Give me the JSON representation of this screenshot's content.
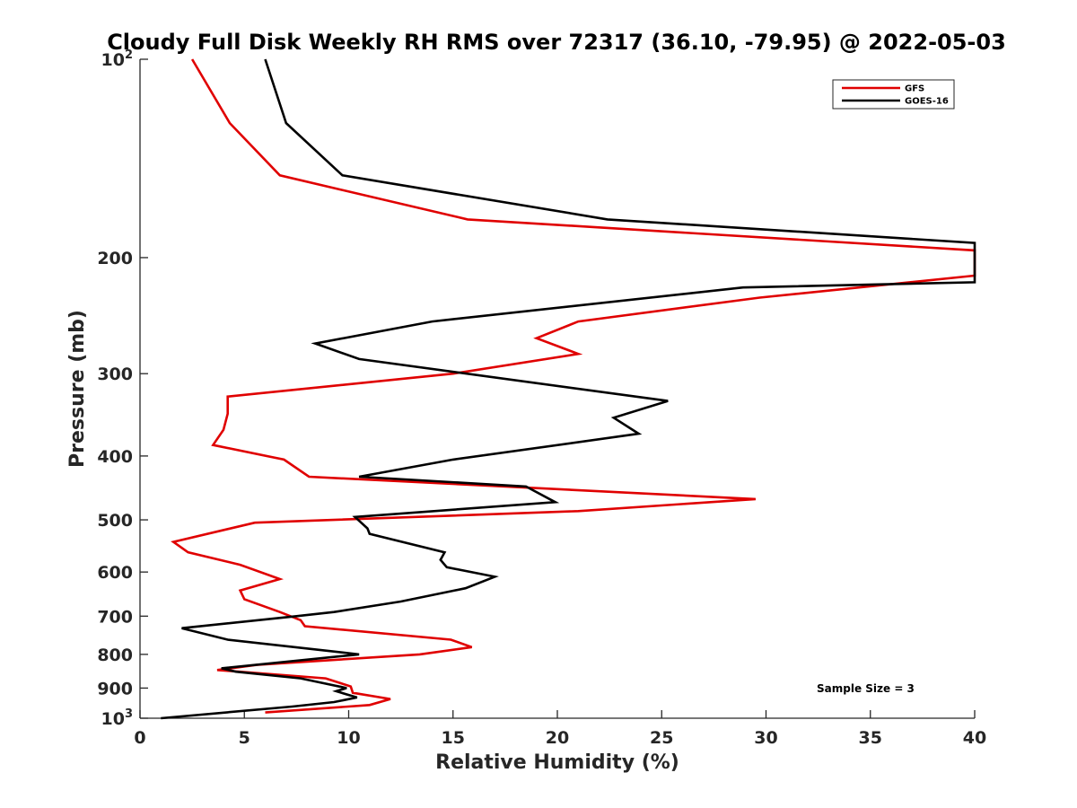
{
  "chart_data": {
    "type": "line",
    "title": "Cloudy Full Disk Weekly RH RMS over 72317 (36.10, -79.95) @ 2022-05-03",
    "xlabel": "Relative Humidity (%)",
    "ylabel": "Pressure (mb)",
    "xlim": [
      0,
      40
    ],
    "ylim": [
      100,
      1000
    ],
    "yscale": "log",
    "y_reversed": true,
    "grid": false,
    "legend_position": "top-right",
    "x_ticks": [
      "0",
      "5",
      "10",
      "15",
      "20",
      "25",
      "30",
      "35",
      "40"
    ],
    "y_ticks": [
      {
        "value": 100,
        "base": "10",
        "exp": "2"
      },
      {
        "value": 200,
        "label": "200"
      },
      {
        "value": 300,
        "label": "300"
      },
      {
        "value": 400,
        "label": "400"
      },
      {
        "value": 500,
        "label": "500"
      },
      {
        "value": 600,
        "label": "600"
      },
      {
        "value": 700,
        "label": "700"
      },
      {
        "value": 800,
        "label": "800"
      },
      {
        "value": 900,
        "label": "900"
      },
      {
        "value": 1000,
        "base": "10",
        "exp": "3"
      }
    ],
    "annotation": "Sample Size = 3",
    "series": [
      {
        "name": "GFS",
        "color": "#e00000",
        "points": [
          [
            2.5,
            100
          ],
          [
            4.3,
            125
          ],
          [
            6.7,
            150
          ],
          [
            15.7,
            175
          ],
          [
            40,
            195
          ],
          [
            40,
            213
          ],
          [
            29.7,
            230
          ],
          [
            21.0,
            250
          ],
          [
            19.0,
            265
          ],
          [
            21.0,
            280
          ],
          [
            15.0,
            300
          ],
          [
            4.2,
            325
          ],
          [
            4.2,
            345
          ],
          [
            4.0,
            365
          ],
          [
            3.5,
            385
          ],
          [
            6.9,
            405
          ],
          [
            8.1,
            430
          ],
          [
            29.5,
            465
          ],
          [
            21.0,
            485
          ],
          [
            5.5,
            505
          ],
          [
            1.6,
            540
          ],
          [
            2.3,
            560
          ],
          [
            4.8,
            585
          ],
          [
            6.7,
            615
          ],
          [
            4.8,
            640
          ],
          [
            5.0,
            660
          ],
          [
            6.7,
            690
          ],
          [
            7.7,
            710
          ],
          [
            7.9,
            725
          ],
          [
            14.9,
            760
          ],
          [
            15.9,
            780
          ],
          [
            13.4,
            800
          ],
          [
            5.6,
            830
          ],
          [
            3.7,
            845
          ],
          [
            8.9,
            870
          ],
          [
            10.1,
            895
          ],
          [
            10.2,
            915
          ],
          [
            12.0,
            935
          ],
          [
            11.0,
            955
          ],
          [
            6.0,
            980
          ]
        ]
      },
      {
        "name": "GOES-16",
        "color": "#000000",
        "points": [
          [
            6.0,
            100
          ],
          [
            7.0,
            125
          ],
          [
            9.7,
            150
          ],
          [
            22.4,
            175
          ],
          [
            40,
            190
          ],
          [
            40,
            218
          ],
          [
            28.9,
            222
          ],
          [
            14.0,
            250
          ],
          [
            8.4,
            270
          ],
          [
            10.5,
            285
          ],
          [
            25.3,
            330
          ],
          [
            22.7,
            350
          ],
          [
            23.9,
            370
          ],
          [
            15.0,
            405
          ],
          [
            10.5,
            430
          ],
          [
            18.5,
            445
          ],
          [
            19.9,
            470
          ],
          [
            10.3,
            495
          ],
          [
            10.9,
            515
          ],
          [
            11.0,
            525
          ],
          [
            14.6,
            560
          ],
          [
            14.4,
            575
          ],
          [
            14.7,
            590
          ],
          [
            17.0,
            610
          ],
          [
            15.6,
            635
          ],
          [
            12.5,
            665
          ],
          [
            9.3,
            690
          ],
          [
            7.5,
            700
          ],
          [
            2.0,
            730
          ],
          [
            4.2,
            760
          ],
          [
            9.0,
            790
          ],
          [
            10.5,
            800
          ],
          [
            3.9,
            840
          ],
          [
            4.6,
            850
          ],
          [
            7.7,
            870
          ],
          [
            9.9,
            900
          ],
          [
            9.4,
            910
          ],
          [
            10.4,
            930
          ],
          [
            9.3,
            945
          ],
          [
            7.3,
            960
          ],
          [
            1.0,
            1000
          ]
        ]
      }
    ]
  }
}
